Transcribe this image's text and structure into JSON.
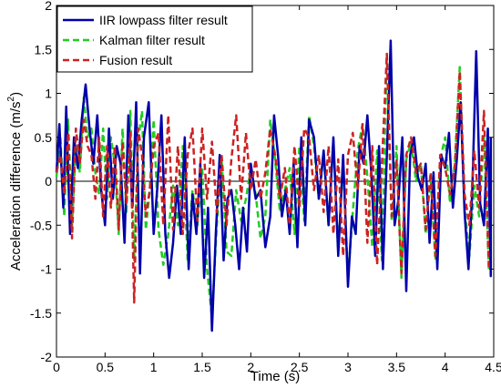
{
  "chart_data": {
    "type": "line",
    "xlabel": "Time (s)",
    "ylabel_main": "Acceleration difference (m/s",
    "ylabel_sup": "2",
    "ylabel_close": ")",
    "xlim": [
      0,
      4.5
    ],
    "ylim": [
      -2,
      2
    ],
    "xticks": [
      0,
      0.5,
      1,
      1.5,
      2,
      2.5,
      3,
      3.5,
      4,
      4.5
    ],
    "xtick_labels": [
      "0",
      "0.5",
      "1",
      "1.5",
      "2",
      "2.5",
      "3",
      "3.5",
      "4",
      "4.5"
    ],
    "yticks": [
      -2,
      -1.5,
      -1,
      -0.5,
      0,
      0.5,
      1,
      1.5,
      2
    ],
    "ytick_labels": [
      "-2",
      "-1.5",
      "-1",
      "-0.5",
      "0",
      "0.5",
      "1",
      "1.5",
      "2"
    ],
    "grid": false,
    "legend_position": "top-left",
    "zero_line": true,
    "series": [
      {
        "name": "IIR lowpass filter result",
        "color": "#0000aa",
        "dash": "solid",
        "x": [
          0,
          0.03,
          0.07,
          0.1,
          0.14,
          0.18,
          0.22,
          0.26,
          0.3,
          0.34,
          0.38,
          0.42,
          0.46,
          0.5,
          0.54,
          0.58,
          0.62,
          0.66,
          0.7,
          0.74,
          0.78,
          0.82,
          0.86,
          0.9,
          0.95,
          1.0,
          1.04,
          1.08,
          1.12,
          1.16,
          1.2,
          1.24,
          1.28,
          1.32,
          1.36,
          1.4,
          1.44,
          1.48,
          1.52,
          1.56,
          1.6,
          1.64,
          1.68,
          1.72,
          1.76,
          1.8,
          1.84,
          1.88,
          1.92,
          1.96,
          2.0,
          2.05,
          2.1,
          2.15,
          2.2,
          2.24,
          2.28,
          2.32,
          2.36,
          2.4,
          2.44,
          2.48,
          2.52,
          2.56,
          2.6,
          2.65,
          2.7,
          2.75,
          2.8,
          2.85,
          2.9,
          2.95,
          3.0,
          3.04,
          3.08,
          3.12,
          3.16,
          3.2,
          3.24,
          3.28,
          3.32,
          3.36,
          3.4,
          3.44,
          3.48,
          3.52,
          3.56,
          3.6,
          3.64,
          3.68,
          3.72,
          3.76,
          3.8,
          3.84,
          3.88,
          3.92,
          3.96,
          4.0,
          4.04,
          4.08,
          4.12,
          4.16,
          4.2,
          4.24,
          4.28,
          4.32,
          4.36,
          4.4,
          4.44
        ],
        "values": [
          0.1,
          0.65,
          -0.3,
          0.85,
          -0.6,
          0.5,
          0.15,
          0.7,
          1.1,
          0.6,
          0.2,
          0.75,
          -0.1,
          -0.5,
          0.6,
          -0.2,
          0.4,
          0.2,
          -0.7,
          0.75,
          -0.3,
          0.9,
          -1.05,
          0.5,
          0.9,
          -0.6,
          -0.05,
          0.75,
          -0.6,
          -1.1,
          -0.7,
          -0.05,
          -0.6,
          0.5,
          -1.0,
          -0.15,
          -0.6,
          0.2,
          -1.1,
          -0.3,
          -1.7,
          -0.6,
          0.3,
          -0.9,
          -0.2,
          -0.1,
          -0.5,
          -1.0,
          -0.3,
          -0.8,
          0.2,
          -0.2,
          -0.1,
          -0.75,
          -0.4,
          0.75,
          0.3,
          -0.4,
          -0.1,
          -0.6,
          0.2,
          -0.75,
          0.5,
          -0.5,
          0.7,
          0.5,
          -0.2,
          0.35,
          -0.5,
          0.5,
          -0.85,
          0.3,
          -1.2,
          -0.4,
          -0.6,
          0.4,
          0.2,
          0.75,
          0.1,
          -0.85,
          0.4,
          -1.0,
          0.3,
          1.6,
          -0.5,
          -0.2,
          0.5,
          -1.25,
          0.3,
          0.5,
          0.05,
          -0.1,
          0.2,
          -0.7,
          0.1,
          -1.0,
          0.3,
          0.15,
          0.55,
          -0.3,
          0.25,
          0.9,
          -0.35,
          -1.0,
          -0.1,
          1.48,
          -0.25,
          -0.5,
          0.6
        ],
        "tail": [
          [
            4.47,
            -1.08
          ],
          [
            4.47,
            0.5
          ]
        ]
      },
      {
        "name": "Kalman filter result",
        "color": "#22cc22",
        "dash": "dashed",
        "x": [
          0,
          0.04,
          0.08,
          0.12,
          0.16,
          0.2,
          0.24,
          0.28,
          0.32,
          0.36,
          0.4,
          0.44,
          0.48,
          0.52,
          0.56,
          0.6,
          0.64,
          0.68,
          0.72,
          0.76,
          0.8,
          0.84,
          0.88,
          0.92,
          0.96,
          1.0,
          1.05,
          1.1,
          1.15,
          1.2,
          1.25,
          1.3,
          1.35,
          1.4,
          1.45,
          1.5,
          1.55,
          1.6,
          1.65,
          1.7,
          1.75,
          1.8,
          1.85,
          1.9,
          1.95,
          2.0,
          2.05,
          2.1,
          2.15,
          2.2,
          2.25,
          2.3,
          2.35,
          2.4,
          2.45,
          2.5,
          2.55,
          2.6,
          2.65,
          2.7,
          2.75,
          2.8,
          2.85,
          2.9,
          2.95,
          3.0,
          3.05,
          3.1,
          3.15,
          3.2,
          3.25,
          3.3,
          3.35,
          3.4,
          3.45,
          3.5,
          3.55,
          3.6,
          3.65,
          3.7,
          3.75,
          3.8,
          3.85,
          3.9,
          3.95,
          4.0,
          4.05,
          4.1,
          4.15,
          4.2,
          4.25,
          4.3,
          4.35,
          4.4,
          4.45
        ],
        "values": [
          0.05,
          0.5,
          -0.4,
          0.7,
          -0.5,
          0.4,
          0.1,
          0.95,
          0.5,
          0.6,
          0.1,
          -0.15,
          0.6,
          -0.2,
          0.5,
          0.2,
          -0.6,
          0.6,
          -0.35,
          0.8,
          -0.9,
          0.45,
          0.8,
          -0.55,
          -0.1,
          0.7,
          -0.55,
          -0.95,
          -0.6,
          -0.05,
          -0.5,
          0.4,
          -0.9,
          -0.1,
          -0.5,
          0.15,
          -1.0,
          -1.55,
          -0.5,
          0.25,
          -0.8,
          -0.85,
          -0.1,
          -0.45,
          -0.2,
          0.15,
          -0.15,
          -0.65,
          -0.4,
          0.7,
          0.25,
          -0.35,
          -0.1,
          0.15,
          -0.6,
          0.4,
          -0.45,
          0.75,
          0.4,
          -0.2,
          0.3,
          -0.5,
          0.45,
          -0.8,
          0.25,
          -1.1,
          -0.35,
          0.35,
          0.65,
          0.05,
          -0.75,
          0.35,
          -0.9,
          1.45,
          -0.45,
          0.4,
          -1.1,
          0.25,
          0.45,
          0.0,
          0.2,
          -0.6,
          0.05,
          -0.9,
          0.25,
          0.5,
          -0.25,
          0.2,
          1.3,
          -0.3,
          -0.85,
          -0.05,
          -0.4,
          0.5,
          -1.0
        ]
      },
      {
        "name": "Fusion result",
        "color": "#cc2222",
        "dash": "dashed",
        "x": [
          0,
          0.04,
          0.08,
          0.12,
          0.16,
          0.2,
          0.24,
          0.28,
          0.32,
          0.36,
          0.4,
          0.44,
          0.48,
          0.52,
          0.56,
          0.6,
          0.64,
          0.68,
          0.72,
          0.76,
          0.8,
          0.84,
          0.88,
          0.92,
          0.96,
          1.0,
          1.05,
          1.1,
          1.15,
          1.2,
          1.25,
          1.3,
          1.35,
          1.4,
          1.45,
          1.5,
          1.55,
          1.6,
          1.65,
          1.7,
          1.75,
          1.8,
          1.85,
          1.9,
          1.95,
          2.0,
          2.05,
          2.1,
          2.15,
          2.2,
          2.25,
          2.3,
          2.35,
          2.4,
          2.45,
          2.5,
          2.55,
          2.6,
          2.65,
          2.7,
          2.75,
          2.8,
          2.85,
          2.9,
          2.95,
          3.0,
          3.05,
          3.1,
          3.15,
          3.2,
          3.25,
          3.3,
          3.35,
          3.4,
          3.45,
          3.5,
          3.55,
          3.6,
          3.65,
          3.7,
          3.75,
          3.8,
          3.85,
          3.9,
          3.95,
          4.0,
          4.05,
          4.1,
          4.15,
          4.2,
          4.25,
          4.3,
          4.35,
          4.4,
          4.45
        ],
        "values": [
          0.1,
          0.3,
          -0.15,
          0.55,
          -0.65,
          0.6,
          0.2,
          0.7,
          0.4,
          0.3,
          -0.2,
          0.5,
          -0.4,
          0.4,
          -0.3,
          0.4,
          -0.55,
          0.45,
          -0.25,
          0.55,
          -1.38,
          0.6,
          0.3,
          -0.4,
          -0.1,
          0.4,
          0.55,
          -0.5,
          0.75,
          -0.55,
          0.4,
          -0.6,
          0.3,
          0.6,
          -0.45,
          0.6,
          -0.2,
          0.45,
          -0.35,
          0.3,
          -0.5,
          0.25,
          0.75,
          -0.2,
          0.55,
          -0.1,
          0.25,
          -0.2,
          0.1,
          0.6,
          0.3,
          -0.2,
          0.15,
          -0.5,
          0.4,
          -0.3,
          0.6,
          0.5,
          -0.1,
          0.3,
          -0.35,
          0.4,
          -0.6,
          0.25,
          -0.85,
          0.3,
          0.55,
          -0.1,
          0.65,
          -0.7,
          0.4,
          -0.95,
          0.2,
          1.45,
          -0.4,
          0.25,
          -1.05,
          0.3,
          0.5,
          0.1,
          0.2,
          -0.55,
          0.1,
          -0.85,
          0.3,
          0.15,
          -0.15,
          0.15,
          1.25,
          -0.15,
          -0.5,
          0.35,
          -0.3,
          0.8,
          -1.0
        ]
      }
    ]
  }
}
